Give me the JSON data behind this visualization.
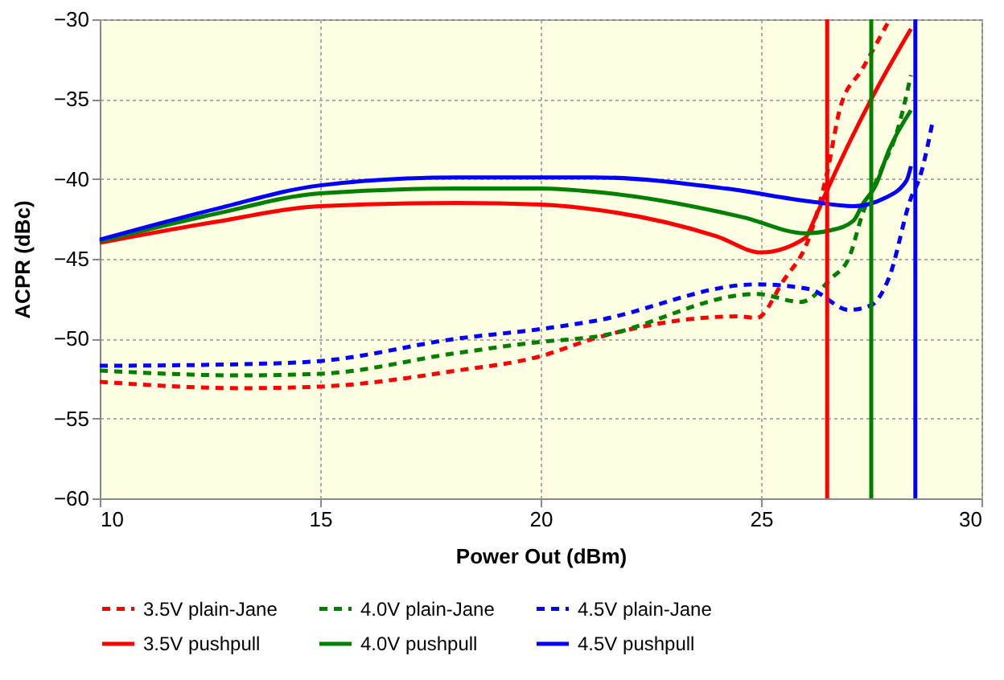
{
  "chart_data": {
    "type": "line",
    "xlabel": "Power Out (dBm)",
    "ylabel": "ACPR (dBc)",
    "xlim": [
      10,
      30
    ],
    "xticks": [
      10,
      15,
      20,
      25,
      30
    ],
    "ylim": [
      -60,
      -30
    ],
    "yticks": [
      -60,
      -55,
      -50,
      -45,
      -40,
      -35,
      -30
    ],
    "grid": true,
    "legend": "bottom",
    "marker": "none",
    "series": [
      {
        "name": "3.5V plain-Jane",
        "color": "#ff0000",
        "line_style": "dashed",
        "x": [
          10,
          13.2,
          15,
          18.1,
          20,
          21.2,
          24.5,
          24.9,
          25.5,
          26.1,
          26.5,
          26.8,
          27.3,
          27.9
        ],
        "values": [
          -52.7,
          -53.1,
          -53,
          -52,
          -51.1,
          -50,
          -48.6,
          -48.7,
          -46.4,
          -43.6,
          -39.6,
          -35.5,
          -33.1,
          -30.1
        ]
      },
      {
        "name": "4.0V plain-Jane",
        "color": "#008000",
        "line_style": "dashed",
        "x": [
          10,
          13.2,
          15,
          18.1,
          20,
          21.2,
          24.9,
          25.9,
          26.6,
          27,
          27.3,
          27.7,
          28.1,
          28.4
        ],
        "values": [
          -52,
          -52.3,
          -52.2,
          -50.9,
          -50.2,
          -49.9,
          -47.2,
          -47.7,
          -46.2,
          -44.9,
          -42.2,
          -39.6,
          -36.9,
          -33.5
        ]
      },
      {
        "name": "4.5V plain-Jane",
        "color": "#0000ff",
        "line_style": "dashed",
        "x": [
          10,
          13.2,
          15,
          18.1,
          20,
          21.2,
          24.9,
          26.1,
          27,
          27.5,
          27.9,
          28.4,
          28.6,
          28.9
        ],
        "values": [
          -51.7,
          -51.6,
          -51.4,
          -50,
          -49.4,
          -48.9,
          -46.6,
          -46.9,
          -48.2,
          -47.9,
          -46.2,
          -41.2,
          -39.9,
          -36.3
        ]
      },
      {
        "name": "3.5V pushpull",
        "color": "#ff0000",
        "line_style": "solid",
        "x": [
          10,
          12.6,
          15,
          18.1,
          20,
          21.2,
          24,
          25,
          26,
          26.2,
          26.5,
          27.5,
          28.4
        ],
        "values": [
          -44,
          -42.7,
          -41.7,
          -41.5,
          -41.6,
          -41.9,
          -43.6,
          -44.6,
          -43.7,
          -42.6,
          -40.7,
          -35,
          -30.6
        ]
      },
      {
        "name": "4.0V pushpull",
        "color": "#008000",
        "line_style": "solid",
        "x": [
          10,
          12.6,
          15,
          18.1,
          20,
          21.2,
          24.6,
          26,
          26.6,
          27.1,
          27.3,
          27.6,
          27.9,
          28.4
        ],
        "values": [
          -43.9,
          -42.2,
          -40.9,
          -40.6,
          -40.6,
          -40.8,
          -42.4,
          -43.4,
          -43.2,
          -42.6,
          -41.6,
          -40.4,
          -38.2,
          -35.7
        ]
      },
      {
        "name": "4.5V pushpull",
        "color": "#0000ff",
        "line_style": "solid",
        "x": [
          10,
          12.6,
          15,
          18.1,
          20,
          21.2,
          24.2,
          26.1,
          27.1,
          27.8,
          28.3,
          28.4
        ],
        "values": [
          -43.8,
          -41.9,
          -40.4,
          -39.9,
          -39.9,
          -39.9,
          -40.6,
          -41.4,
          -41.7,
          -41.2,
          -40.1,
          -39.2
        ]
      }
    ],
    "ref_lines": [
      {
        "axis": "x",
        "value": 26.5,
        "color": "#ff0000"
      },
      {
        "axis": "x",
        "value": 27.5,
        "color": "#008000"
      },
      {
        "axis": "x",
        "value": 28.5,
        "color": "#0000ff"
      }
    ]
  }
}
